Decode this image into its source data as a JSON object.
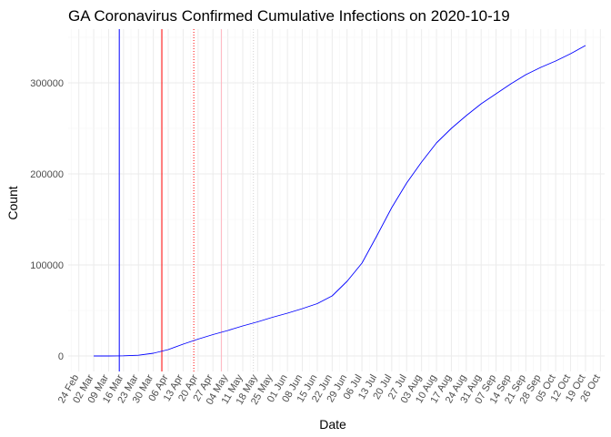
{
  "chart_data": {
    "type": "line",
    "title": "GA Coronavirus Confirmed Cumulative Infections on 2020-10-19",
    "xlabel": "Date",
    "ylabel": "Count",
    "x_tick_labels": [
      "24 Feb",
      "02 Mar",
      "09 Mar",
      "16 Mar",
      "23 Mar",
      "30 Mar",
      "06 Apr",
      "13 Apr",
      "20 Apr",
      "27 Apr",
      "04 May",
      "11 May",
      "18 May",
      "25 May",
      "01 Jun",
      "08 Jun",
      "15 Jun",
      "22 Jun",
      "29 Jun",
      "06 Jul",
      "13 Jul",
      "20 Jul",
      "27 Jul",
      "03 Aug",
      "10 Aug",
      "17 Aug",
      "24 Aug",
      "31 Aug",
      "07 Sep",
      "14 Sep",
      "21 Sep",
      "28 Sep",
      "05 Oct",
      "12 Oct",
      "19 Oct",
      "26 Oct"
    ],
    "y_ticks": [
      0,
      100000,
      200000,
      300000
    ],
    "y_tick_labels": [
      "0",
      "100000",
      "200000",
      "300000"
    ],
    "x_range": [
      "2020-02-19",
      "2020-10-28"
    ],
    "y_range": [
      -17000,
      359000
    ],
    "grid": true,
    "series": [
      {
        "color": "#0000ff",
        "points": [
          [
            "2020-03-02",
            0
          ],
          [
            "2020-03-09",
            0
          ],
          [
            "2020-03-16",
            150
          ],
          [
            "2020-03-23",
            800
          ],
          [
            "2020-03-30",
            3000
          ],
          [
            "2020-04-06",
            7000
          ],
          [
            "2020-04-13",
            13000
          ],
          [
            "2020-04-20",
            18500
          ],
          [
            "2020-04-27",
            23500
          ],
          [
            "2020-05-04",
            28000
          ],
          [
            "2020-05-11",
            33000
          ],
          [
            "2020-05-18",
            37500
          ],
          [
            "2020-05-25",
            42500
          ],
          [
            "2020-06-01",
            47000
          ],
          [
            "2020-06-08",
            52000
          ],
          [
            "2020-06-15",
            57500
          ],
          [
            "2020-06-22",
            66000
          ],
          [
            "2020-06-29",
            82000
          ],
          [
            "2020-07-06",
            102000
          ],
          [
            "2020-07-13",
            132000
          ],
          [
            "2020-07-20",
            163000
          ],
          [
            "2020-07-27",
            190000
          ],
          [
            "2020-08-03",
            213000
          ],
          [
            "2020-08-10",
            234000
          ],
          [
            "2020-08-17",
            250000
          ],
          [
            "2020-08-24",
            264000
          ],
          [
            "2020-08-31",
            277000
          ],
          [
            "2020-09-07",
            288000
          ],
          [
            "2020-09-14",
            299000
          ],
          [
            "2020-09-21",
            309000
          ],
          [
            "2020-09-28",
            317000
          ],
          [
            "2020-10-05",
            324000
          ],
          [
            "2020-10-12",
            332000
          ],
          [
            "2020-10-19",
            341000
          ]
        ]
      }
    ],
    "vertical_lines": [
      {
        "date": "2020-03-14",
        "color": "#0000ff",
        "style": "solid"
      },
      {
        "date": "2020-04-03",
        "color": "#ff0000",
        "style": "solid"
      },
      {
        "date": "2020-04-18",
        "color": "#ff0000",
        "style": "dotted"
      },
      {
        "date": "2020-05-01",
        "color": "#ffb6c1",
        "style": "solid"
      },
      {
        "date": "2020-05-16",
        "color": "#d3d3d3",
        "style": "dotted"
      }
    ]
  }
}
